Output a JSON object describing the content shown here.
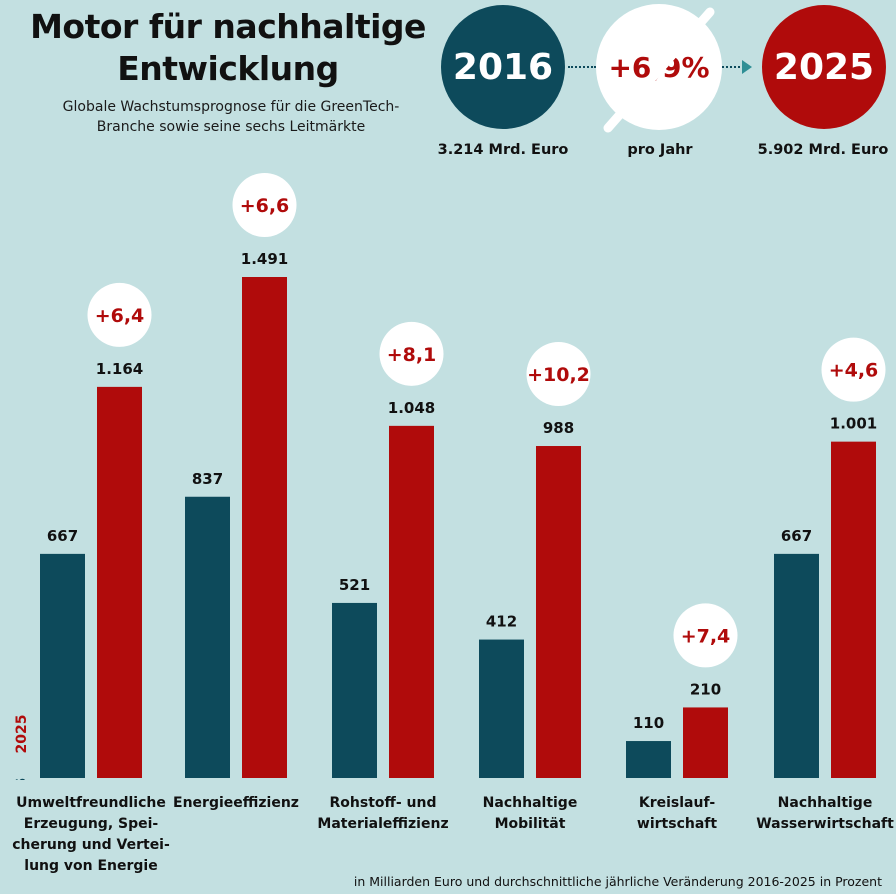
{
  "header": {
    "title": "Motor für nachhaltige Entwicklung",
    "subtitle": "Globale Wachstumsprognose für die GreenTech-Branche sowie seine sechs Leitmärkte",
    "start_year": "2016",
    "end_year": "2025",
    "rate": "+6,9%",
    "start_value": "3.214 Mrd. Euro",
    "rate_unit": "pro Jahr",
    "end_value": "5.902 Mrd. Euro"
  },
  "colors": {
    "series_2016": "#0d4a5b",
    "series_2025": "#b00b0b",
    "background": "#c3e0e1"
  },
  "chart_data": {
    "type": "bar",
    "categories": [
      "Umweltfreundliche Erzeugung, Speicherung und Verteilung von Energie",
      "Energieeffizienz",
      "Rohstoff- und Materialeffizienz",
      "Nachhaltige Mobilität",
      "Kreislaufwirtschaft",
      "Nachhaltige Wasserwirtschaft"
    ],
    "category_labels": [
      "Umweltfreundliche\nErzeugung, Spei-\ncherung und Vertei-\nlung von Energie",
      "Energieeffizienz",
      "Rohstoff- und\nMaterialeffizienz",
      "Nachhaltige\nMobilität",
      "Kreislauf-\nwirtschaft",
      "Nachhaltige\nWasserwirtschaft"
    ],
    "series": [
      {
        "name": "2016",
        "values": [
          667,
          837,
          521,
          412,
          110,
          667
        ],
        "labels": [
          "667",
          "837",
          "521",
          "412",
          "110",
          "667"
        ]
      },
      {
        "name": "2025",
        "values": [
          1164,
          1491,
          1048,
          988,
          210,
          1001
        ],
        "labels": [
          "1.164",
          "1.491",
          "1.048",
          "988",
          "210",
          "1.001"
        ]
      }
    ],
    "growth": [
      "+6,4",
      "+6,6",
      "+8,1",
      "+10,2",
      "+7,4",
      "+4,6"
    ],
    "ylim": [
      0,
      1491
    ],
    "xlabel": "",
    "ylabel": "",
    "note": "in Milliarden Euro und durchschnittliche jährliche Veränderung 2016-2025 in Prozent"
  }
}
